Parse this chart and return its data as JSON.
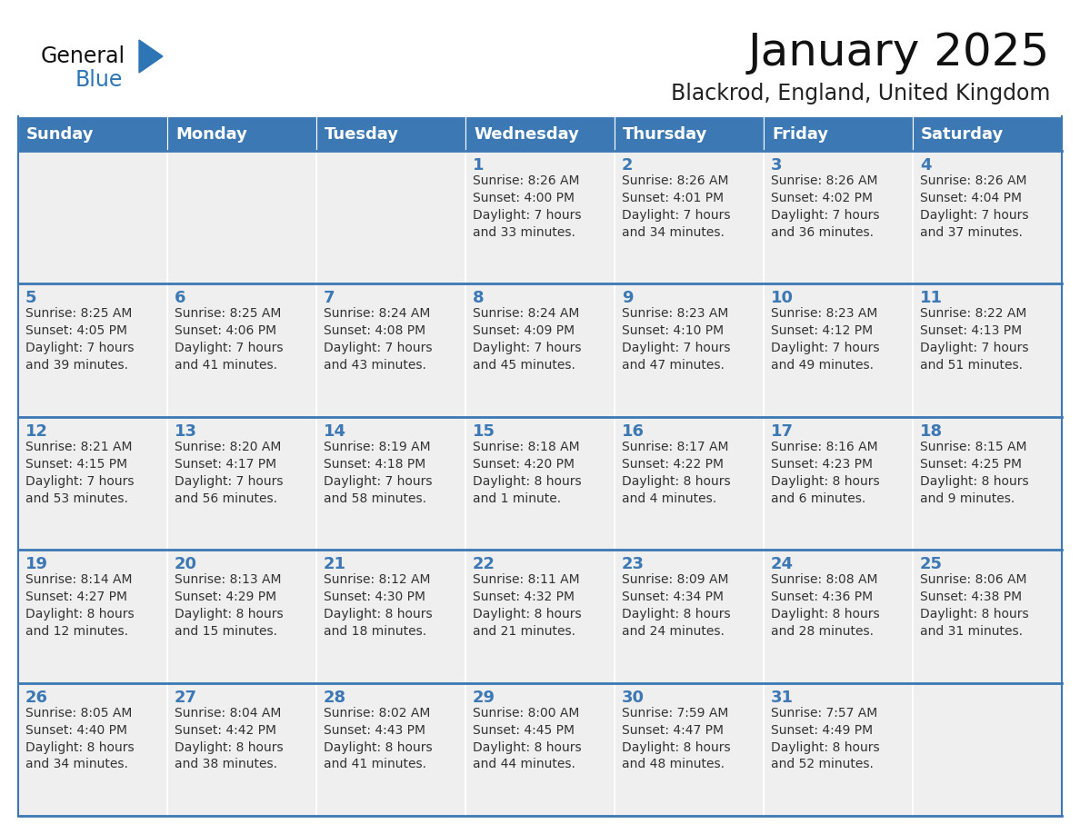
{
  "title": "January 2025",
  "subtitle": "Blackrod, England, United Kingdom",
  "days_of_week": [
    "Sunday",
    "Monday",
    "Tuesday",
    "Wednesday",
    "Thursday",
    "Friday",
    "Saturday"
  ],
  "header_bg": "#3C78B4",
  "header_text_color": "#FFFFFF",
  "cell_bg": "#EFEFEF",
  "cell_border_color": "#3C78B4",
  "day_number_color": "#3C78B4",
  "cell_text_color": "#333333",
  "title_color": "#111111",
  "subtitle_color": "#222222",
  "logo_general_color": "#111111",
  "logo_blue_color": "#2E75B6",
  "weeks": [
    [
      {
        "day": null,
        "info": ""
      },
      {
        "day": null,
        "info": ""
      },
      {
        "day": null,
        "info": ""
      },
      {
        "day": 1,
        "info": "Sunrise: 8:26 AM\nSunset: 4:00 PM\nDaylight: 7 hours\nand 33 minutes."
      },
      {
        "day": 2,
        "info": "Sunrise: 8:26 AM\nSunset: 4:01 PM\nDaylight: 7 hours\nand 34 minutes."
      },
      {
        "day": 3,
        "info": "Sunrise: 8:26 AM\nSunset: 4:02 PM\nDaylight: 7 hours\nand 36 minutes."
      },
      {
        "day": 4,
        "info": "Sunrise: 8:26 AM\nSunset: 4:04 PM\nDaylight: 7 hours\nand 37 minutes."
      }
    ],
    [
      {
        "day": 5,
        "info": "Sunrise: 8:25 AM\nSunset: 4:05 PM\nDaylight: 7 hours\nand 39 minutes."
      },
      {
        "day": 6,
        "info": "Sunrise: 8:25 AM\nSunset: 4:06 PM\nDaylight: 7 hours\nand 41 minutes."
      },
      {
        "day": 7,
        "info": "Sunrise: 8:24 AM\nSunset: 4:08 PM\nDaylight: 7 hours\nand 43 minutes."
      },
      {
        "day": 8,
        "info": "Sunrise: 8:24 AM\nSunset: 4:09 PM\nDaylight: 7 hours\nand 45 minutes."
      },
      {
        "day": 9,
        "info": "Sunrise: 8:23 AM\nSunset: 4:10 PM\nDaylight: 7 hours\nand 47 minutes."
      },
      {
        "day": 10,
        "info": "Sunrise: 8:23 AM\nSunset: 4:12 PM\nDaylight: 7 hours\nand 49 minutes."
      },
      {
        "day": 11,
        "info": "Sunrise: 8:22 AM\nSunset: 4:13 PM\nDaylight: 7 hours\nand 51 minutes."
      }
    ],
    [
      {
        "day": 12,
        "info": "Sunrise: 8:21 AM\nSunset: 4:15 PM\nDaylight: 7 hours\nand 53 minutes."
      },
      {
        "day": 13,
        "info": "Sunrise: 8:20 AM\nSunset: 4:17 PM\nDaylight: 7 hours\nand 56 minutes."
      },
      {
        "day": 14,
        "info": "Sunrise: 8:19 AM\nSunset: 4:18 PM\nDaylight: 7 hours\nand 58 minutes."
      },
      {
        "day": 15,
        "info": "Sunrise: 8:18 AM\nSunset: 4:20 PM\nDaylight: 8 hours\nand 1 minute."
      },
      {
        "day": 16,
        "info": "Sunrise: 8:17 AM\nSunset: 4:22 PM\nDaylight: 8 hours\nand 4 minutes."
      },
      {
        "day": 17,
        "info": "Sunrise: 8:16 AM\nSunset: 4:23 PM\nDaylight: 8 hours\nand 6 minutes."
      },
      {
        "day": 18,
        "info": "Sunrise: 8:15 AM\nSunset: 4:25 PM\nDaylight: 8 hours\nand 9 minutes."
      }
    ],
    [
      {
        "day": 19,
        "info": "Sunrise: 8:14 AM\nSunset: 4:27 PM\nDaylight: 8 hours\nand 12 minutes."
      },
      {
        "day": 20,
        "info": "Sunrise: 8:13 AM\nSunset: 4:29 PM\nDaylight: 8 hours\nand 15 minutes."
      },
      {
        "day": 21,
        "info": "Sunrise: 8:12 AM\nSunset: 4:30 PM\nDaylight: 8 hours\nand 18 minutes."
      },
      {
        "day": 22,
        "info": "Sunrise: 8:11 AM\nSunset: 4:32 PM\nDaylight: 8 hours\nand 21 minutes."
      },
      {
        "day": 23,
        "info": "Sunrise: 8:09 AM\nSunset: 4:34 PM\nDaylight: 8 hours\nand 24 minutes."
      },
      {
        "day": 24,
        "info": "Sunrise: 8:08 AM\nSunset: 4:36 PM\nDaylight: 8 hours\nand 28 minutes."
      },
      {
        "day": 25,
        "info": "Sunrise: 8:06 AM\nSunset: 4:38 PM\nDaylight: 8 hours\nand 31 minutes."
      }
    ],
    [
      {
        "day": 26,
        "info": "Sunrise: 8:05 AM\nSunset: 4:40 PM\nDaylight: 8 hours\nand 34 minutes."
      },
      {
        "day": 27,
        "info": "Sunrise: 8:04 AM\nSunset: 4:42 PM\nDaylight: 8 hours\nand 38 minutes."
      },
      {
        "day": 28,
        "info": "Sunrise: 8:02 AM\nSunset: 4:43 PM\nDaylight: 8 hours\nand 41 minutes."
      },
      {
        "day": 29,
        "info": "Sunrise: 8:00 AM\nSunset: 4:45 PM\nDaylight: 8 hours\nand 44 minutes."
      },
      {
        "day": 30,
        "info": "Sunrise: 7:59 AM\nSunset: 4:47 PM\nDaylight: 8 hours\nand 48 minutes."
      },
      {
        "day": 31,
        "info": "Sunrise: 7:57 AM\nSunset: 4:49 PM\nDaylight: 8 hours\nand 52 minutes."
      },
      {
        "day": null,
        "info": ""
      }
    ]
  ]
}
